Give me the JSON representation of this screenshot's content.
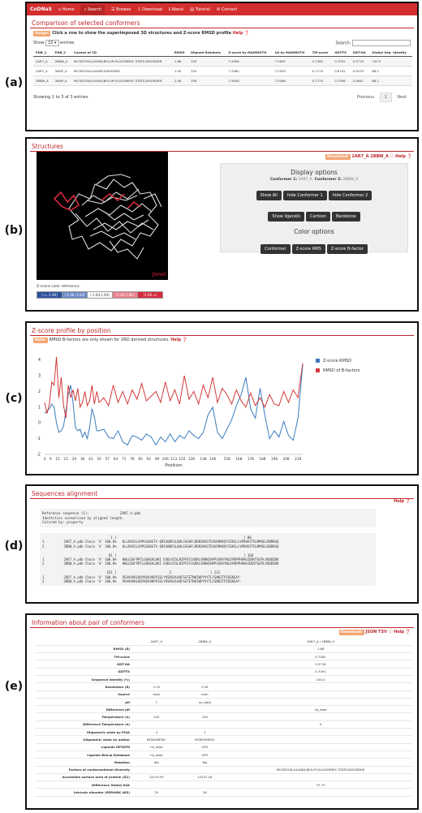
{
  "labels": {
    "a": "(a)",
    "b": "(b)",
    "c": "(c)",
    "d": "(d)",
    "e": "(e)"
  },
  "nav": {
    "brand": "CoDNaS",
    "items": [
      {
        "icon": "home-icon",
        "label": "Home"
      },
      {
        "icon": "search-icon",
        "label": "Search"
      },
      {
        "icon": "list-icon",
        "label": "Browse"
      },
      {
        "icon": "download-icon",
        "label": "Download"
      },
      {
        "icon": "info-icon",
        "label": "About"
      },
      {
        "icon": "book-icon",
        "label": "Tutorial"
      },
      {
        "icon": "envelope-icon",
        "label": "Contact"
      }
    ]
  },
  "compare": {
    "title": "Comparison of selected conformers",
    "usage_badge": "Usage:",
    "usage_text": "Click a row to show the superimposed 3D structures and Z-score RMSD profile",
    "help": "Help",
    "show": "Show",
    "entries_value": "10",
    "entries": "entries",
    "search_label": "Search:",
    "columns": [
      "PDB_1",
      "PDB_2",
      "Causes of CD",
      "RMSD",
      "Aligned Residues",
      "Z-score by MAMMOTH",
      "LN by MAMMOTH",
      "TM-score",
      "GDT-TS",
      "GDT-HA",
      "Global Seq. Identity"
    ],
    "rows": [
      [
        "2AR7_A",
        "2BBW_A",
        "MUTATION;LIGAND;BIOLIP;OLIGOMERIC STATE;DISORDER",
        "1.86",
        "159",
        "7.4366",
        "7.3845",
        "0.7482",
        "0.7091",
        "0.5716",
        "100.0"
      ],
      [
        "2AR7_A",
        "3NDP_A",
        "MUTATION;LIGAND;DISORDER",
        "1.95",
        "154",
        "7.2960",
        "7.2529",
        "0.7174",
        "0.6741",
        "0.5479",
        "88.1"
      ],
      [
        "2BBW_A",
        "3NDP_A",
        "MUTATION;LIGAND;BIOLIP;OLIGOMERIC STATE;DISORDER",
        "2.06",
        "158",
        "7.5648",
        "7.5046",
        "0.7723",
        "0.7056",
        "0.5841",
        "88.1"
      ]
    ],
    "info": "Showing 1 to 3 of 3 entries",
    "prev": "Previous",
    "page": "1",
    "next": "Next"
  },
  "structures": {
    "title": "Structures",
    "download_badge": "Download:",
    "download_text": "2AR7_A 2BBW_A",
    "help": "Help",
    "jsmol": "JSmol",
    "zref_label": "Z-score color reference:",
    "zref": [
      {
        "label": "(-∞,-1.96]",
        "color": "#2c4f9c",
        "text": "#fff"
      },
      {
        "label": "(-1.96,-1.64]",
        "color": "#6b8ac7",
        "text": "#fff"
      },
      {
        "label": "(-1.64,1.64)",
        "color": "#ffffff",
        "text": "#333"
      },
      {
        "label": "[1.64,1.96)",
        "color": "#e8808a",
        "text": "#fff"
      },
      {
        "label": "[1.96,∞)",
        "color": "#d42a3c",
        "text": "#fff"
      }
    ],
    "display_title": "Display options",
    "conf1_label": "Conformer 1:",
    "conf1": "2AR7_A",
    "conf2_label": "Conformer 2:",
    "conf2": "2BBW_A",
    "btns1": [
      "Show All",
      "hide Conformer 1",
      "hide Conformer 2"
    ],
    "btns2": [
      "Show ligand/s",
      "Cartoon",
      "Backbone"
    ],
    "color_title": "Color options",
    "btns3": [
      "Conformer",
      "Z-score RMS",
      "Z-score B-factor"
    ]
  },
  "zprofile": {
    "title": "Z-score profile by position",
    "note_badge": "Note:",
    "note_text": "RMSD B-factors are only shown for XRD derived structures.",
    "help": "Help"
  },
  "chart_data": {
    "type": "line",
    "xlabel": "Position",
    "ylabel": "",
    "ylim": [
      -2,
      4.6
    ],
    "yticks": [
      -2,
      -1,
      0,
      1,
      2,
      3,
      4
    ],
    "xlim": [
      4,
      222
    ],
    "xticks": [
      4,
      9,
      15,
      22,
      29,
      36,
      43,
      50,
      57,
      64,
      71,
      78,
      85,
      92,
      99,
      106,
      113,
      120,
      128,
      138,
      146,
      158,
      168,
      178,
      188,
      198,
      208,
      218
    ],
    "legend_position": "top-right",
    "series": [
      {
        "name": "Z-score RMSD",
        "color": "#3a7bbf",
        "x": [
          4,
          8,
          10,
          12,
          14,
          16,
          18,
          20,
          22,
          24,
          26,
          28,
          30,
          32,
          34,
          36,
          38,
          40,
          42,
          44,
          46,
          48,
          50,
          54,
          58,
          62,
          66,
          70,
          74,
          78,
          82,
          86,
          90,
          94,
          98,
          102,
          106,
          110,
          114,
          118,
          122,
          126,
          130,
          134,
          138,
          142,
          146,
          150,
          154,
          158,
          162,
          166,
          170,
          174,
          178,
          182,
          186,
          190,
          194,
          198,
          202,
          206,
          210,
          214,
          218,
          222
        ],
        "values": [
          0.6,
          0.9,
          1.2,
          1.0,
          0.0,
          -0.6,
          -0.5,
          -0.2,
          0.8,
          1.8,
          2.4,
          1.3,
          -0.3,
          -0.5,
          -0.4,
          -0.9,
          -0.6,
          -1.0,
          -0.3,
          0.9,
          0.4,
          -0.5,
          -0.5,
          -0.4,
          -0.9,
          -1.0,
          -0.5,
          -1.2,
          -1.4,
          -0.8,
          -0.9,
          -1.1,
          -0.7,
          -0.9,
          -1.4,
          -0.9,
          -1.2,
          -0.7,
          -1.2,
          -0.8,
          -1.0,
          -0.5,
          -0.8,
          -1.0,
          -0.6,
          0.5,
          1.0,
          -0.6,
          -1.0,
          -0.4,
          0.2,
          1.1,
          1.8,
          2.9,
          0.9,
          0.3,
          2.2,
          0.5,
          -1.0,
          -0.5,
          -0.9,
          0.1,
          -0.8,
          -1.1,
          0.3,
          3.7
        ]
      },
      {
        "name": "RMSD of B-factors",
        "color": "#d33a3a",
        "x": [
          4,
          6,
          8,
          10,
          12,
          14,
          16,
          18,
          20,
          22,
          24,
          26,
          28,
          30,
          32,
          34,
          36,
          38,
          40,
          42,
          44,
          46,
          48,
          50,
          54,
          58,
          62,
          66,
          70,
          74,
          78,
          82,
          86,
          90,
          94,
          98,
          102,
          106,
          110,
          114,
          118,
          122,
          126,
          130,
          134,
          138,
          142,
          146,
          150,
          154,
          158,
          162,
          166,
          170,
          174,
          178,
          182,
          186,
          190,
          194,
          198,
          202,
          206,
          210,
          214,
          218,
          222
        ],
        "values": [
          1.3,
          0.6,
          1.2,
          2.6,
          2.4,
          4.2,
          1.6,
          2.9,
          1.1,
          0.3,
          2.4,
          1.6,
          2.1,
          1.4,
          2.2,
          1.0,
          1.3,
          2.0,
          1.1,
          1.4,
          2.4,
          1.2,
          2.0,
          1.3,
          1.6,
          1.1,
          2.4,
          1.3,
          2.0,
          1.2,
          2.1,
          1.5,
          2.5,
          1.4,
          1.7,
          2.0,
          1.3,
          2.6,
          1.4,
          2.1,
          1.2,
          3.0,
          1.5,
          2.0,
          1.2,
          2.4,
          1.6,
          2.9,
          1.3,
          2.2,
          1.8,
          1.2,
          2.1,
          1.4,
          1.0,
          1.9,
          1.1,
          1.6,
          1.0,
          1.8,
          1.2,
          1.1,
          2.0,
          1.3,
          2.1,
          1.6,
          3.8
        ]
      }
    ]
  },
  "alignment": {
    "title": "Sequences alignment",
    "help": "Help",
    "header": "Reference sequence (1):               2AR7_A.pdb\nIdentities normalised by aligned length.\nColored by: property",
    "block": "                                   1 [                                                                 ] 80\n1          2AR7_A.pdb Chain 'A' 100.0%   KLLRAVILGPPGSGKGTV QRIAQNFGLQHLSSGHFLRENIKASTEVGEMAKQYIEKSLLVPDHVITRLMMSELENRRGQ\n2          2BBW_A.pdb Chain 'A' 100.0%   KLLRAVILGPPGSGKGTV QRIAQNFGLQHLSSGHFLRENIKASTEVGEMAKQYIEKSLLVPDHVITRLMMSELENRRGQ\n\n                                  81 [                                                                 ] 160\n1          2AR7_A.pdb Chain 'A' 100.0%   HWLLDGFPRTLGQAEALDKI EVDLVISLNIPFETLKDRLSRRWIHPPSGRVYNLDFNPPHVHGIDDVTGEPLVQQEDDK\n2          2BBW_A.pdb Chain 'A' 100.0%   HWLLDGFPRTLGQAEALDKI EVDLVISLNIPFETLKDRLSRRWIHPPSGRVYNLDFNPPHVHGIDDVTGEPLVQQEDDK\n\n                                 161 [                           2                    ] 221\n1          2AR7_A.pdb Chain 'A' 100.0%   PEAVAARLRQYKDVAKPVIELYKSRGVLHQFSGTETNKIWPYVYTLFSNKITPIQSKEAY-\n2          2BBW_A.pdb Chain 'A' 100.0%   PEAVAARLRQYKDVAKPVIELYKSRGVLHQFSGTETNKIWPYVYTLFSNKITPIQSKEAY-"
  },
  "pairinfo": {
    "title": "Information about pair of conformers",
    "download_badge": "Download:",
    "download_text": "JSON TSV",
    "help": "Help",
    "columns": [
      "",
      "2AR7_A",
      "2BBW_A",
      "2AR7_A / 2BBW_A"
    ],
    "rows": [
      [
        "RMSD (Å)",
        "",
        "",
        "1.86"
      ],
      [
        "TM-score",
        "",
        "",
        "0.7482"
      ],
      [
        "GDT-HA",
        "",
        "",
        "0.5716"
      ],
      [
        "GDT-TS",
        "",
        "",
        "0.7091"
      ],
      [
        "Sequence identity (%)",
        "",
        "",
        "100.0"
      ],
      [
        "Resolution (Å)",
        "2.15",
        "2.05",
        ""
      ],
      [
        "Source",
        "man",
        "man",
        ""
      ],
      [
        "pH",
        "7",
        "no_data",
        ""
      ],
      [
        "Difference pH",
        "",
        "",
        "no_data"
      ],
      [
        "Temperature (k)",
        "100",
        "100",
        ""
      ],
      [
        "Difference Temperature (k)",
        "",
        "",
        "0"
      ],
      [
        "Oligomeric state by PISA",
        "4",
        "1",
        ""
      ],
      [
        "Oligomeric state by author",
        "MONOMERIC",
        "MONOMERIC",
        ""
      ],
      [
        "Ligands HETATM",
        "no_data",
        "GP5",
        ""
      ],
      [
        "Ligands BioLip Database",
        "no_data",
        "GP5",
        ""
      ],
      [
        "Mutation",
        "Yes",
        "Yes",
        ""
      ],
      [
        "Factors of conformational diversity",
        "",
        "",
        "MUTATION;LIGAND;BIOLIP;OLIGOMERIC STATE;DISORDER"
      ],
      [
        "Accessible surface area of protein (Å2)",
        "12274.93",
        "12237.18",
        ""
      ],
      [
        "Difference Global ASA",
        "",
        "",
        "37.75"
      ],
      [
        "Intrinsic disorder (REMARK 465)",
        "25",
        "26",
        ""
      ]
    ]
  }
}
